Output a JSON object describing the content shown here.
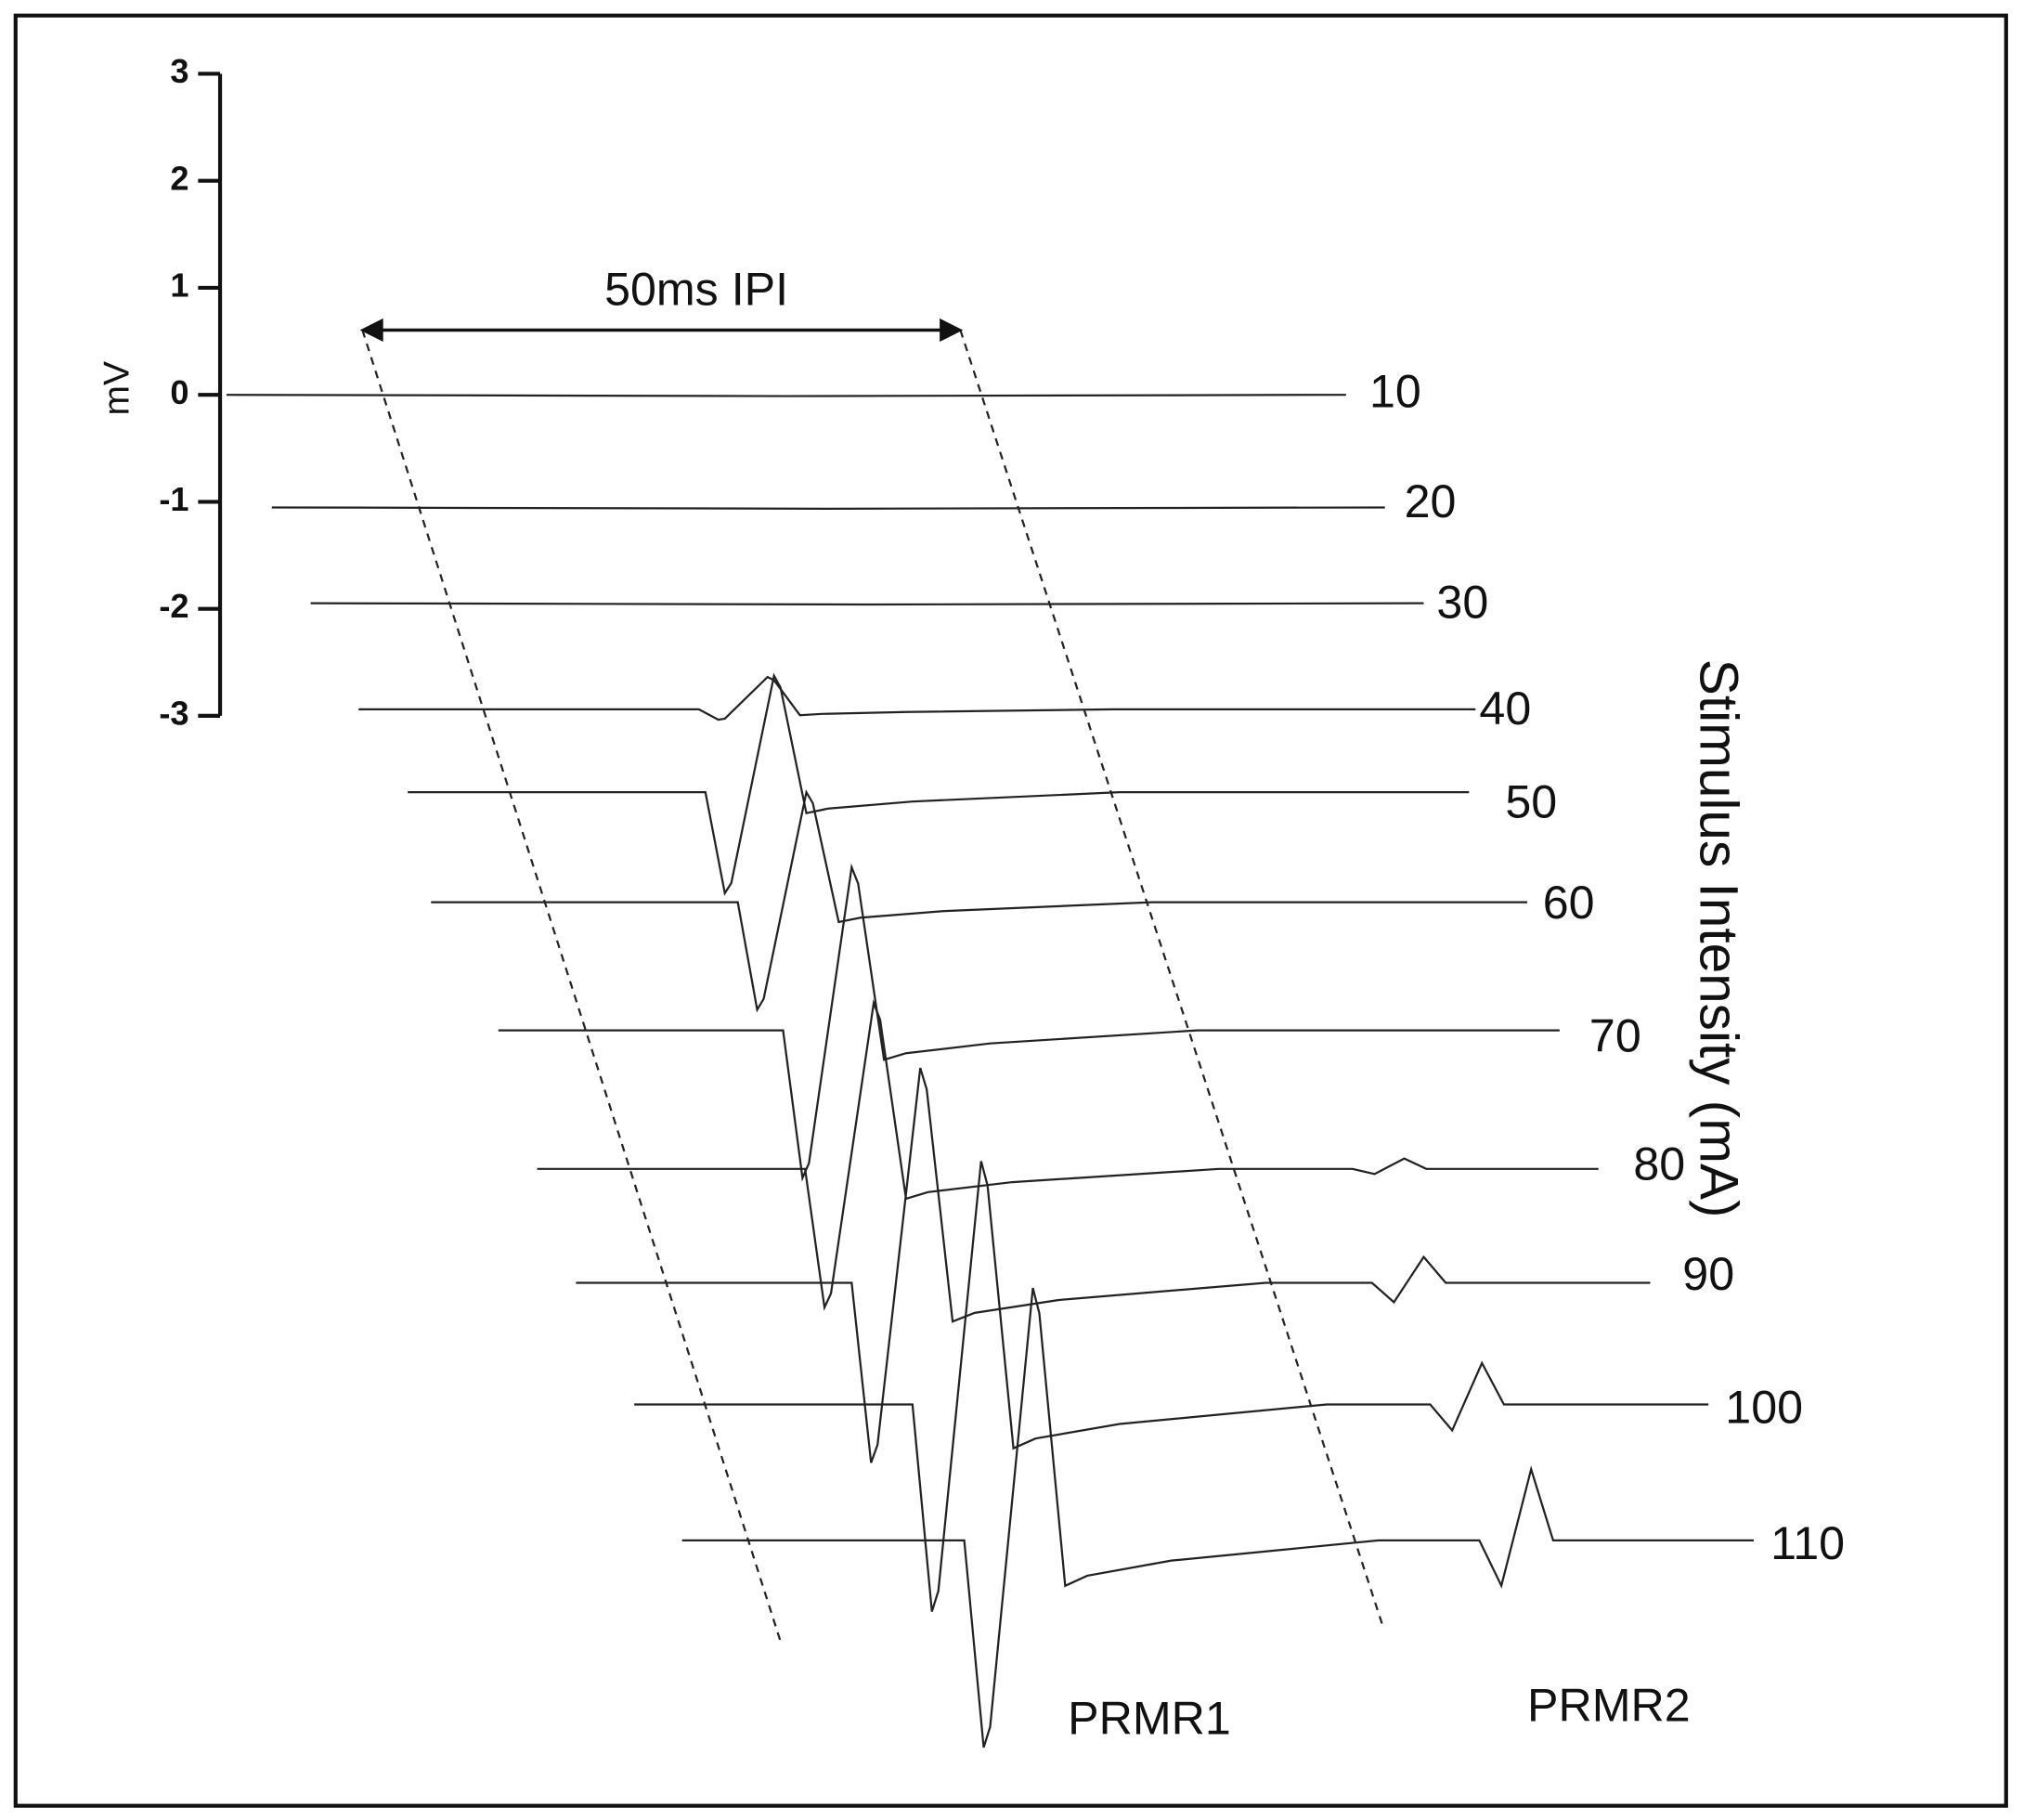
{
  "y_axis": {
    "unit": "mV",
    "ticks": [
      3,
      2,
      1,
      0,
      -1,
      -2,
      -3
    ]
  },
  "interval_label": "50ms IPI",
  "intensity_axis_title": "Stimulus Intensity (mA)",
  "intensity_labels": [
    "10",
    "20",
    "30",
    "40",
    "50",
    "60",
    "70",
    "80",
    "90",
    "100",
    "110"
  ],
  "response_labels": [
    "PRMR1",
    "PRMR2"
  ]
}
